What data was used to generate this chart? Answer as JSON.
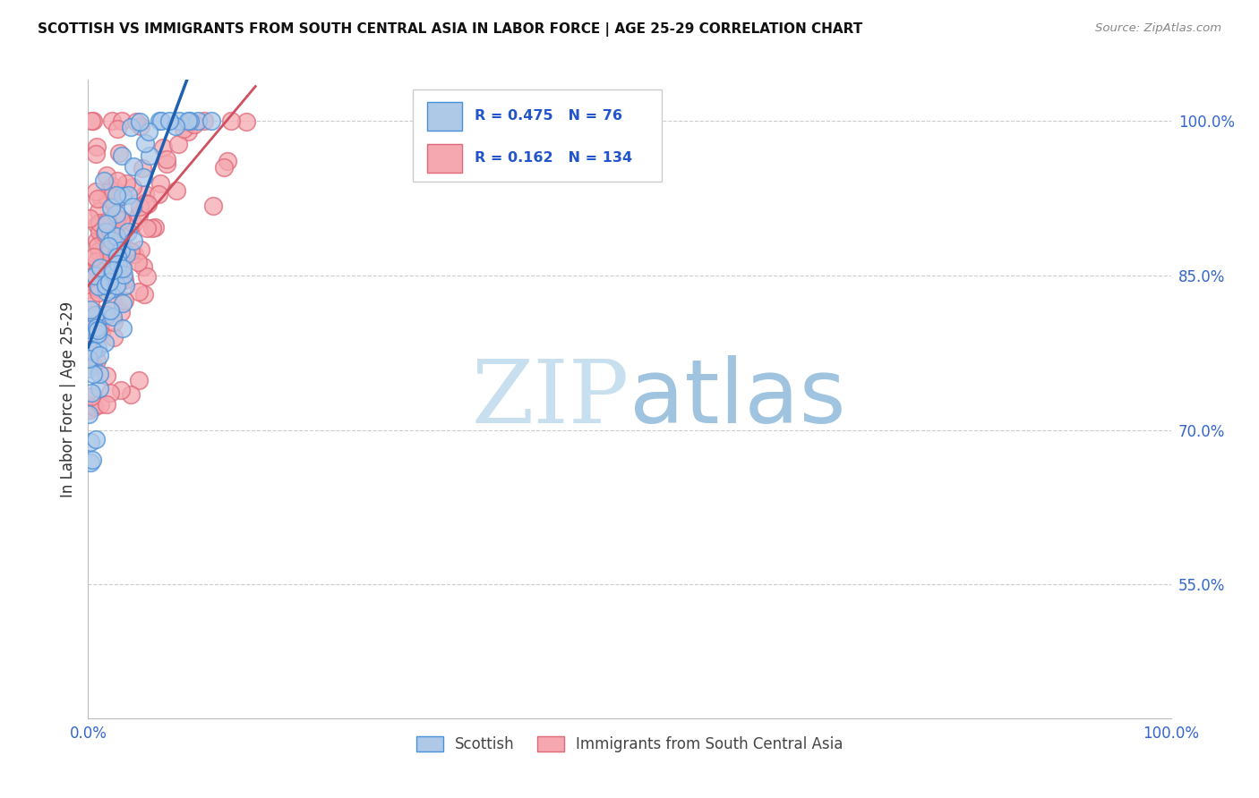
{
  "title": "SCOTTISH VS IMMIGRANTS FROM SOUTH CENTRAL ASIA IN LABOR FORCE | AGE 25-29 CORRELATION CHART",
  "source": "Source: ZipAtlas.com",
  "ylabel": "In Labor Force | Age 25-29",
  "yticks": [
    0.55,
    0.7,
    0.85,
    1.0
  ],
  "ytick_labels": [
    "55.0%",
    "70.0%",
    "85.0%",
    "100.0%"
  ],
  "r_scottish": 0.475,
  "n_scottish": 76,
  "r_immigrant": 0.162,
  "n_immigrant": 134,
  "scottish_fill": "#aec9e8",
  "scottish_edge": "#4a90d9",
  "immigrant_fill": "#f5a8b0",
  "immigrant_edge": "#e06878",
  "scottish_line_color": "#2060b0",
  "immigrant_line_color": "#d05060",
  "tick_color": "#3366cc",
  "grid_color": "#cccccc",
  "legend_text_color": "#2255cc",
  "watermark_zip_color": "#c8dff0",
  "watermark_atlas_color": "#a0c4e0"
}
